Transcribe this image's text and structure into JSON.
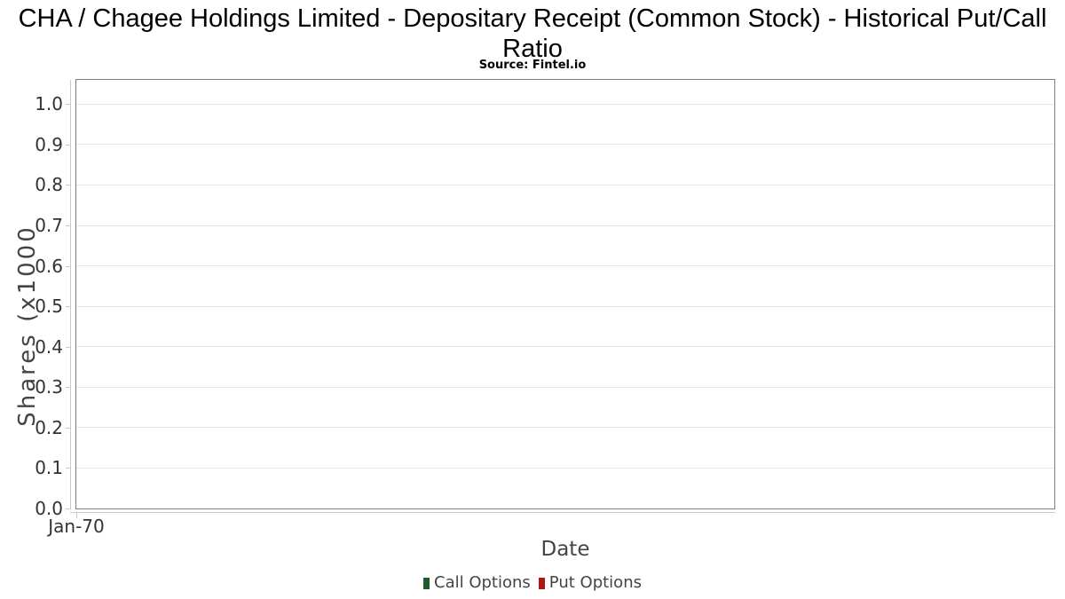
{
  "header": {
    "title": "CHA / Chagee Holdings Limited - Depositary Receipt (Common Stock) - Historical Put/Call Ratio",
    "subtitle": "Source: Fintel.io"
  },
  "chart_data": {
    "type": "bar",
    "title": "CHA / Chagee Holdings Limited - Depositary Receipt (Common Stock) - Historical Put/Call Ratio",
    "subtitle": "Source: Fintel.io",
    "xlabel": "Date",
    "ylabel": "Shares (x1000",
    "ylim": [
      0.0,
      1.06
    ],
    "grid": "horizontal",
    "legend_position": "bottom",
    "y_tick_values": [
      0.0,
      0.1,
      0.2,
      0.3,
      0.4,
      0.5,
      0.6,
      0.7,
      0.8,
      0.9,
      1.0
    ],
    "y_tick_labels": [
      "0.0",
      "0.1",
      "0.2",
      "0.3",
      "0.4",
      "0.5",
      "0.6",
      "0.7",
      "0.8",
      "0.9",
      "1.0"
    ],
    "x_tick_labels": [
      "Jan-70"
    ],
    "x_tick_fracs": [
      0
    ],
    "categories": [],
    "series": [
      {
        "name": "Call Options",
        "color": "#1e5c30",
        "values": []
      },
      {
        "name": "Put Options",
        "color": "#b11212",
        "values": []
      }
    ]
  }
}
